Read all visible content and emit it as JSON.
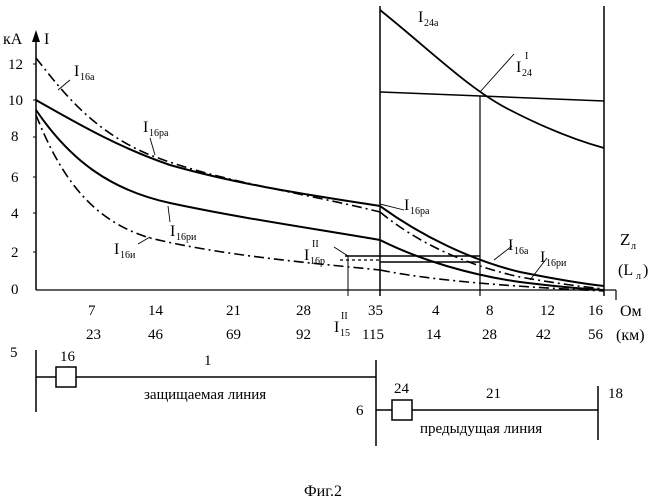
{
  "y_axis": {
    "label": "кА",
    "symbol": "I",
    "ticks": [
      "12",
      "10",
      "8",
      "6",
      "4",
      "2",
      "0"
    ]
  },
  "x_axis": {
    "z_symbol": "Z",
    "z_sub": "л",
    "l_open": "(L",
    "l_sub": "л",
    "l_close": ")",
    "unit_ohm": "Ом",
    "unit_km": "(км)",
    "ohm_ticks_left": [
      "7",
      "14",
      "21",
      "28",
      "35"
    ],
    "km_ticks_left": [
      "23",
      "46",
      "69",
      "92",
      "115"
    ],
    "ohm_ticks_right": [
      "4",
      "8",
      "12",
      "16"
    ],
    "km_ticks_right": [
      "14",
      "28",
      "42",
      "56"
    ]
  },
  "curve_labels": {
    "i16a_left": {
      "main": "I",
      "sub": "16а"
    },
    "i16pa_left": {
      "main": "I",
      "sub": "16ра"
    },
    "i16pi_left": {
      "main": "I",
      "sub": "16ри"
    },
    "i16i": {
      "main": "I",
      "sub": "16и"
    },
    "i16p2": {
      "main": "I",
      "sub": "16р",
      "sup": "II"
    },
    "i15_2": {
      "main": "I",
      "sub": "15",
      "sup": "II"
    },
    "i24a": {
      "main": "I",
      "sub": "24а"
    },
    "i24_1": {
      "main": "I",
      "sub": "24",
      "sup": "I"
    },
    "i16pa_right": {
      "main": "I",
      "sub": "16ра"
    },
    "i16a_right": {
      "main": "I",
      "sub": "16а"
    },
    "i16pi_right": {
      "main": "I",
      "sub": "16ри"
    }
  },
  "schematic": {
    "bus5": "5",
    "relay16": "16",
    "line1_num": "1",
    "line1_name": "защищаемая линия",
    "bus6": "6",
    "relay24": "24",
    "line21_num": "21",
    "bus18": "18",
    "line21_name": "предыдущая линия"
  },
  "caption": "Фиг.2"
}
